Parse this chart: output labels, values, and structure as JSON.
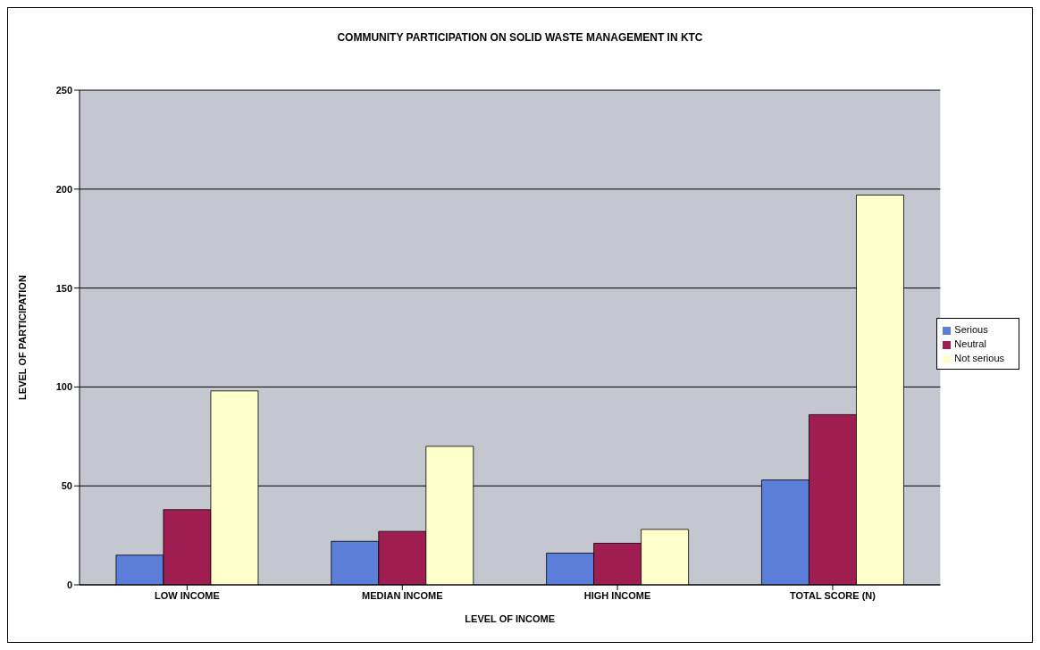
{
  "chart_data": {
    "type": "bar",
    "title": "COMMUNITY PARTICIPATION ON SOLID WASTE MANAGEMENT IN KTC",
    "xlabel": "LEVEL OF INCOME",
    "ylabel": "LEVEL OF PARTICIPATION",
    "categories": [
      "LOW INCOME",
      "MEDIAN INCOME",
      "HIGH INCOME",
      "TOTAL SCORE (N)"
    ],
    "series": [
      {
        "name": "Serious",
        "color": "#5b7fd8",
        "values": [
          15,
          22,
          16,
          53
        ]
      },
      {
        "name": "Neutral",
        "color": "#a01d52",
        "values": [
          38,
          27,
          21,
          86
        ]
      },
      {
        "name": "Not serious",
        "color": "#ffffcc",
        "values": [
          98,
          70,
          28,
          197
        ]
      }
    ],
    "ylim": [
      0,
      250
    ],
    "yticks": [
      0,
      50,
      100,
      150,
      200,
      250
    ],
    "grid": "y",
    "legend": "right"
  }
}
